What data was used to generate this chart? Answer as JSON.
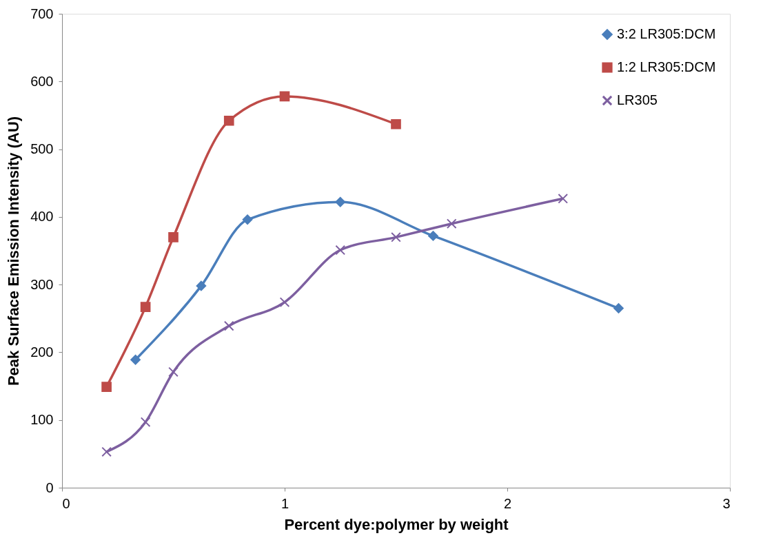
{
  "chart_data": {
    "type": "line",
    "xlabel": "Percent dye:polymer by weight",
    "ylabel": "Peak Surface Emission Intensity (AU)",
    "xlim": [
      0,
      3
    ],
    "xticks": [
      0,
      1,
      2,
      3
    ],
    "ylim": [
      0,
      700
    ],
    "yticks": [
      0,
      100,
      200,
      300,
      400,
      500,
      600,
      700
    ],
    "grid": false,
    "legend": "top right",
    "series": [
      {
        "name": "3:2 LR305:DCM",
        "color": "#4a7ebb",
        "marker": "diamond",
        "x": [
          0.33,
          0.625,
          0.833,
          1.25,
          1.667,
          2.5
        ],
        "values": [
          189,
          298,
          396,
          422,
          372,
          265
        ]
      },
      {
        "name": "1:2 LR305:DCM",
        "color": "#be4b48",
        "marker": "square",
        "x": [
          0.2,
          0.375,
          0.5,
          0.75,
          1.0,
          1.5
        ],
        "values": [
          149,
          267,
          370,
          542,
          578,
          537
        ]
      },
      {
        "name": "LR305",
        "color": "#7d5fa0",
        "marker": "cross",
        "x": [
          0.2,
          0.375,
          0.5,
          0.75,
          1.0,
          1.25,
          1.5,
          1.75,
          2.25
        ],
        "values": [
          53,
          97,
          171,
          239,
          274,
          351,
          370,
          390,
          427
        ]
      }
    ]
  }
}
